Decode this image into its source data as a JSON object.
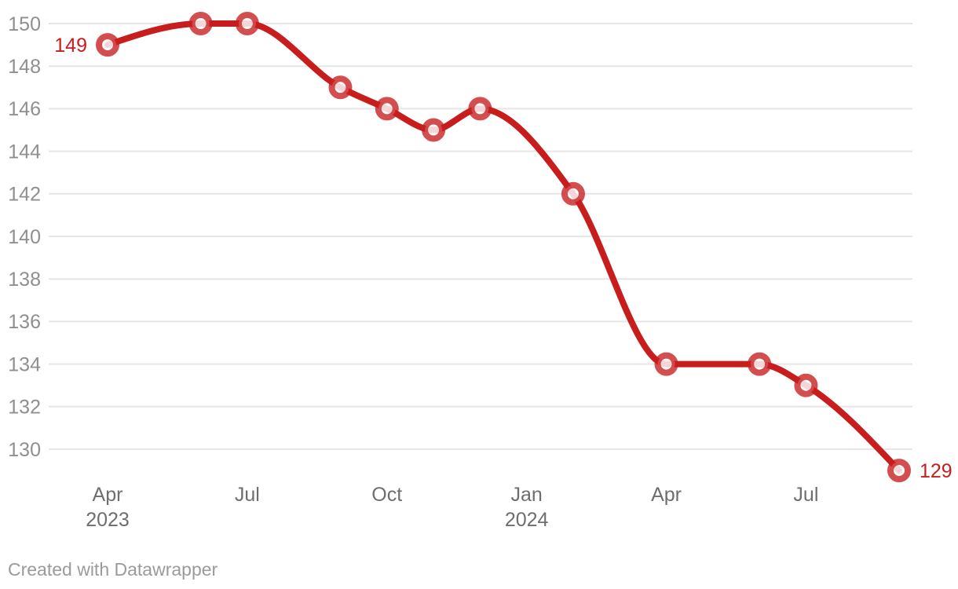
{
  "chart_data": {
    "type": "line",
    "title": "",
    "series": [
      {
        "name": "index-value",
        "points": [
          {
            "label": "Apr 2023",
            "month_index": 0,
            "value": 149
          },
          {
            "label": "Jun 2023",
            "month_index": 2,
            "value": 150
          },
          {
            "label": "Jul 2023",
            "month_index": 3,
            "value": 150
          },
          {
            "label": "Sep 2023",
            "month_index": 5,
            "value": 147
          },
          {
            "label": "Oct 2023",
            "month_index": 6,
            "value": 146
          },
          {
            "label": "Nov 2023",
            "month_index": 7,
            "value": 145
          },
          {
            "label": "Dec 2023",
            "month_index": 8,
            "value": 146
          },
          {
            "label": "Feb 2024",
            "month_index": 10,
            "value": 142
          },
          {
            "label": "Apr 2024",
            "month_index": 12,
            "value": 134
          },
          {
            "label": "Jun 2024",
            "month_index": 14,
            "value": 134
          },
          {
            "label": "Jul 2024",
            "month_index": 15,
            "value": 133
          },
          {
            "label": "Sep 2024",
            "month_index": 17,
            "value": 129
          }
        ]
      }
    ],
    "point_labels": {
      "first": "149",
      "last": "129"
    },
    "y_axis": {
      "ticks": [
        150,
        148,
        146,
        144,
        142,
        140,
        138,
        136,
        134,
        132,
        130
      ],
      "min": 129,
      "max": 150,
      "grid": true
    },
    "x_axis": {
      "ticks": [
        {
          "label": "Apr",
          "sublabel": "2023",
          "month_index": 0
        },
        {
          "label": "Jul",
          "sublabel": "",
          "month_index": 3
        },
        {
          "label": "Oct",
          "sublabel": "",
          "month_index": 6
        },
        {
          "label": "Jan",
          "sublabel": "2024",
          "month_index": 9
        },
        {
          "label": "Apr",
          "sublabel": "",
          "month_index": 12
        },
        {
          "label": "Jul",
          "sublabel": "",
          "month_index": 15
        }
      ]
    },
    "legend": "none",
    "colors": {
      "line": "#c71e1d",
      "marker_ring": "rgba(199,30,29,0.78)",
      "marker_fill": "rgba(255,255,255,0.82)",
      "value_label": "#c71e1d",
      "grid": "#e6e6e6",
      "y_tick_text": "#8f8f8f",
      "x_tick_text": "#6e6e6e"
    }
  },
  "footer": {
    "credit": "Created with Datawrapper"
  }
}
